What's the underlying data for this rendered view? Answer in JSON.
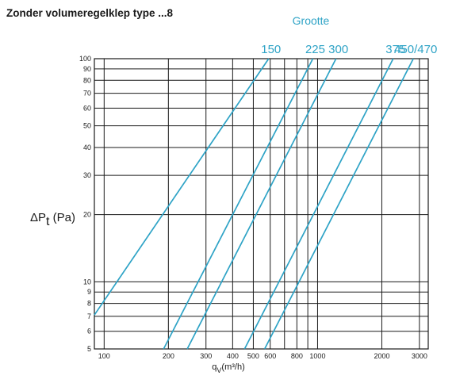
{
  "chart_data": {
    "type": "line",
    "title": "Zonder volumeregelklep type ...8",
    "legend_title": "Grootte",
    "legend_placement": "top, labels at line ends",
    "x_scale": "log",
    "y_scale": "log",
    "xlim": [
      90,
      3300
    ],
    "ylim": [
      5,
      100
    ],
    "grid": true,
    "ylabel": {
      "main": "ΔP",
      "sub": "t",
      "unit": " (Pa)"
    },
    "xlabel": {
      "main": "q",
      "sub": "V",
      "unit": "(m³/h)"
    },
    "x_ticks": [
      100,
      200,
      300,
      400,
      500,
      600,
      800,
      1000,
      2000,
      3000
    ],
    "x_tick_labels": [
      "100",
      "200",
      "300",
      "400",
      "500",
      "600",
      "800",
      "1000",
      "2000",
      "3000"
    ],
    "x_minor_gridlines": [
      700,
      900
    ],
    "y_ticks": [
      5,
      6,
      7,
      8,
      9,
      10,
      20,
      30,
      40,
      50,
      60,
      70,
      80,
      90,
      100
    ],
    "y_tick_labels": [
      "5",
      "6",
      "7",
      "8",
      "9",
      "10",
      "20",
      "30",
      "40",
      "50",
      "60",
      "70",
      "80",
      "90",
      "100"
    ],
    "series": [
      {
        "name": "150",
        "x": [
          90,
          590
        ],
        "y": [
          7.1,
          100
        ]
      },
      {
        "name": "225",
        "x": [
          190,
          950
        ],
        "y": [
          5,
          100
        ]
      },
      {
        "name": "300",
        "x": [
          245,
          1220
        ],
        "y": [
          5,
          100
        ]
      },
      {
        "name": "375",
        "x": [
          455,
          2260
        ],
        "y": [
          5,
          100
        ]
      },
      {
        "name": "450/470",
        "x": [
          565,
          2810
        ],
        "y": [
          5,
          100
        ]
      }
    ],
    "series_label_text": [
      "150",
      "225",
      "300",
      "375",
      "450/470"
    ],
    "series_color": "#2ea3c6",
    "grid_color": "#1a1a1a"
  }
}
